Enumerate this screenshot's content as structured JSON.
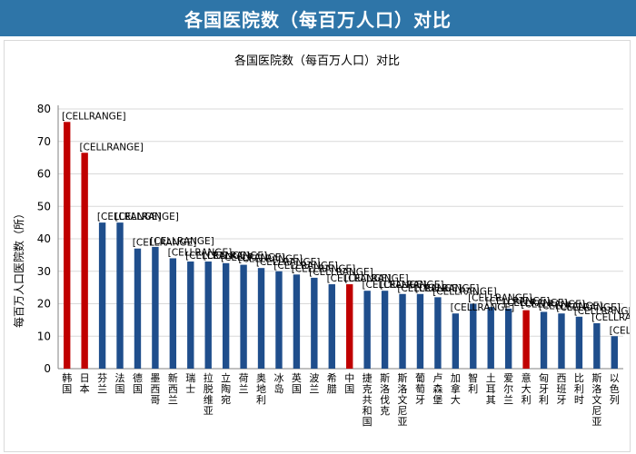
{
  "page": {
    "banner_title": "各国医院数（每百万人口）对比"
  },
  "colors": {
    "banner": "#2e75a8",
    "bar_default": "#1f4e8c",
    "bar_highlight": "#c00000",
    "axis": "#808080",
    "grid": "#d9d9d9",
    "label": "#000000"
  },
  "chart_data": {
    "type": "bar",
    "title": "各国医院数（每百万人口）对比",
    "ylabel": "每百万人口医院数（所）",
    "xlabel": "",
    "ylim": [
      0,
      80
    ],
    "yticks": [
      0,
      10,
      20,
      30,
      40,
      50,
      60,
      70,
      80
    ],
    "grid": true,
    "legend": "none",
    "data_label_text": "[CELLRANGE]",
    "categories": [
      "韩国",
      "日本",
      "芬兰",
      "法国",
      "德国",
      "墨西哥",
      "新西兰",
      "瑞士",
      "拉脱维亚",
      "立陶宛",
      "荷兰",
      "奥地利",
      "冰岛",
      "英国",
      "波兰",
      "希腊",
      "中国",
      "捷克共和国",
      "斯洛伐克",
      "斯洛文尼亚",
      "葡萄牙",
      "卢森堡",
      "加拿大",
      "智利",
      "土耳其",
      "爱尔兰",
      "意大利",
      "匈牙利",
      "西班牙",
      "比利时",
      "斯洛文尼亚",
      "以色列"
    ],
    "values": [
      76,
      66.5,
      45,
      45,
      37,
      37.5,
      34,
      33,
      33,
      32.5,
      32,
      31,
      30,
      29,
      28,
      26,
      26,
      24,
      24,
      23,
      23,
      22,
      17,
      20,
      19,
      18.5,
      18,
      17.5,
      17,
      16,
      14,
      10
    ],
    "highlight": [
      true,
      true,
      false,
      false,
      false,
      false,
      false,
      false,
      false,
      false,
      false,
      false,
      false,
      false,
      false,
      false,
      true,
      false,
      false,
      false,
      false,
      false,
      false,
      false,
      false,
      false,
      true,
      false,
      false,
      false,
      false,
      false
    ]
  }
}
